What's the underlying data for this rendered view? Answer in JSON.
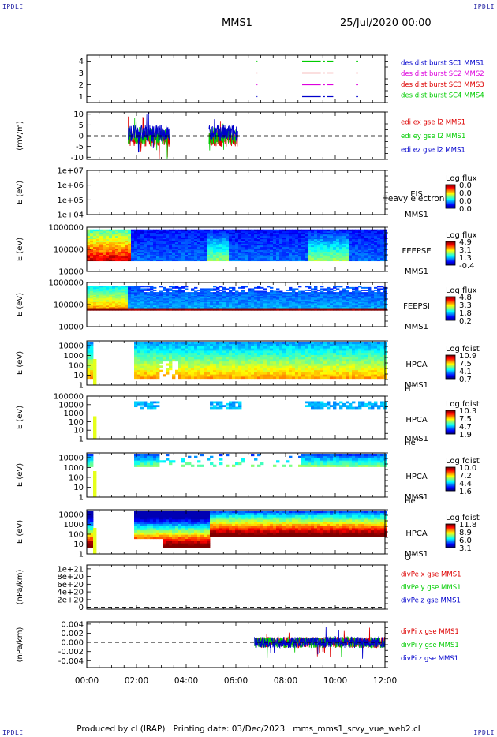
{
  "corner_labels": [
    "IPDLI",
    "IPDLI",
    "IPDLI",
    "IPDLI"
  ],
  "header": {
    "spacecraft": "MMS1",
    "date": "25/Jul/2020 00:00"
  },
  "footer": {
    "produced_by": "Produced by cl (IRAP)",
    "printing_date": "Printing date: 03/Dec/2023",
    "script_name": "mms_mms1_srvy_vue_web2.cl"
  },
  "chart_data": [
    {
      "type": "line",
      "title": "",
      "xlabel": "",
      "ylabel": "",
      "xlim": [
        "00:00",
        "12:00"
      ],
      "ylim": [
        0.5,
        4.5
      ],
      "yticks": [
        "1",
        "2",
        "3",
        "4"
      ],
      "series": [
        {
          "name": "des dist burst SC1 MMS1",
          "color": "#0000cc",
          "level": 1
        },
        {
          "name": "des dist burst SC2 MMS2",
          "color": "#dd00dd",
          "level": 2
        },
        {
          "name": "des dist burst SC3 MMS3",
          "color": "#dd0000",
          "level": 3
        },
        {
          "name": "des dist burst SC4 MMS4",
          "color": "#00cc00",
          "level": 4
        }
      ],
      "intervals": [
        [
          "06:50",
          "06:52"
        ],
        [
          "08:40",
          "09:25"
        ],
        [
          "09:30",
          "09:35"
        ],
        [
          "09:40",
          "09:55"
        ],
        [
          "10:50",
          "10:55"
        ]
      ]
    },
    {
      "type": "line",
      "title": "",
      "xlabel": "",
      "ylabel": "(mV/m)",
      "xlim": [
        "00:00",
        "12:00"
      ],
      "ylim": [
        -11,
        11
      ],
      "yticks": [
        "10",
        "5",
        "0",
        "-5",
        "-10"
      ],
      "zero_line": true,
      "series": [
        {
          "name": "edi ex gse l2 MMS1",
          "color": "#dd0000"
        },
        {
          "name": "edi ey gse l2 MMS1",
          "color": "#00cc00"
        },
        {
          "name": "edi ez gse l2 MMS1",
          "color": "#0000cc"
        }
      ],
      "activity": [
        [
          "01:40",
          "03:20"
        ],
        [
          "04:55",
          "06:05"
        ]
      ]
    },
    {
      "type": "heatmap",
      "title": "",
      "xlabel": "",
      "ylabel": "E (eV)",
      "xlim": [
        "00:00",
        "12:00"
      ],
      "ylim": [
        10000,
        10000000
      ],
      "yscale": "log",
      "yticks": [
        "1e+07",
        "1e+06",
        "1e+05",
        "1e+04"
      ],
      "instrument": [
        "EIS",
        "MMS1"
      ],
      "species_label": "Heavy electron to",
      "colorbar": {
        "title": "Log flux",
        "ticks": [
          "0.0",
          "0.0",
          "0.0",
          "0.0"
        ]
      },
      "empty": true
    },
    {
      "type": "heatmap",
      "title": "",
      "xlabel": "",
      "ylabel": "E (eV)",
      "xlim": [
        "00:00",
        "12:00"
      ],
      "ylim": [
        10000,
        1000000
      ],
      "yscale": "log",
      "yticks": [
        "1000000",
        "100000",
        "10000"
      ],
      "instrument": [
        "FEEPSE",
        "MMS1"
      ],
      "colorbar": {
        "title": "Log flux",
        "ticks": [
          "4.9",
          "3.1",
          "1.3",
          "-0.4"
        ]
      }
    },
    {
      "type": "heatmap",
      "title": "",
      "xlabel": "",
      "ylabel": "E (eV)",
      "xlim": [
        "00:00",
        "12:00"
      ],
      "ylim": [
        10000,
        1000000
      ],
      "yscale": "log",
      "yticks": [
        "1000000",
        "100000",
        "10000"
      ],
      "instrument": [
        "FEEPSI",
        "MMS1"
      ],
      "colorbar": {
        "title": "Log flux",
        "ticks": [
          "4.8",
          "3.3",
          "1.8",
          "0.2"
        ]
      }
    },
    {
      "type": "heatmap",
      "title": "",
      "xlabel": "",
      "ylabel": "E (eV)",
      "xlim": [
        "00:00",
        "12:00"
      ],
      "ylim": [
        1,
        30000
      ],
      "yscale": "log",
      "yticks": [
        "10000",
        "1000",
        "100",
        "10",
        "1"
      ],
      "instrument": [
        "HPCA",
        "MMS1"
      ],
      "species": {
        "base": "H",
        "sup": "+"
      },
      "colorbar": {
        "title": "Log fdist",
        "ticks": [
          "10.9",
          "7.5",
          "4.1",
          "0.7"
        ]
      }
    },
    {
      "type": "heatmap",
      "title": "",
      "xlabel": "",
      "ylabel": "E (eV)",
      "xlim": [
        "00:00",
        "12:00"
      ],
      "ylim": [
        1,
        100000
      ],
      "yscale": "log",
      "yticks": [
        "100000",
        "10000",
        "1000",
        "100",
        "10",
        "1"
      ],
      "instrument": [
        "HPCA",
        "MMS1"
      ],
      "species": {
        "base": "He",
        "sup": "+"
      },
      "colorbar": {
        "title": "Log fdist",
        "ticks": [
          "10.3",
          "7.5",
          "4.7",
          "1.9"
        ]
      }
    },
    {
      "type": "heatmap",
      "title": "",
      "xlabel": "",
      "ylabel": "E (eV)",
      "xlim": [
        "00:00",
        "12:00"
      ],
      "ylim": [
        1,
        30000
      ],
      "yscale": "log",
      "yticks": [
        "10000",
        "1000",
        "100",
        "10",
        "1"
      ],
      "instrument": [
        "HPCA",
        "MMS1"
      ],
      "species": {
        "base": "He",
        "sup": "++"
      },
      "colorbar": {
        "title": "Log fdist",
        "ticks": [
          "10.0",
          "7.2",
          "4.4",
          "1.6"
        ]
      }
    },
    {
      "type": "heatmap",
      "title": "",
      "xlabel": "",
      "ylabel": "E (eV)",
      "xlim": [
        "00:00",
        "12:00"
      ],
      "ylim": [
        1,
        30000
      ],
      "yscale": "log",
      "yticks": [
        "10000",
        "1000",
        "100",
        "10",
        "1"
      ],
      "instrument": [
        "HPCA",
        "MMS1"
      ],
      "species": {
        "base": "O",
        "sup": "+"
      },
      "colorbar": {
        "title": "Log fdist",
        "ticks": [
          "11.8",
          "8.9",
          "6.0",
          "3.1"
        ]
      }
    },
    {
      "type": "line",
      "title": "",
      "xlabel": "",
      "ylabel": "(nPa/km)",
      "xlim": [
        "00:00",
        "12:00"
      ],
      "ylim": [
        -5e+19,
        1.1e+21
      ],
      "yticks": [
        "1e+21",
        "8e+20",
        "6e+20",
        "4e+20",
        "2e+20",
        "0"
      ],
      "zero_line": true,
      "series": [
        {
          "name": "divPe x gse MMS1",
          "color": "#dd0000"
        },
        {
          "name": "divPe y gse MMS1",
          "color": "#00cc00"
        },
        {
          "name": "divPe z gse MMS1",
          "color": "#0000cc"
        }
      ],
      "empty": true
    },
    {
      "type": "line",
      "title": "",
      "xlabel": "",
      "ylabel": "(nPa/km)",
      "xlim": [
        "00:00",
        "12:00"
      ],
      "ylim": [
        -0.0055,
        0.0045
      ],
      "yticks": [
        "0.004",
        "0.002",
        "0.000",
        "-0.002",
        "-0.004"
      ],
      "zero_line": true,
      "series": [
        {
          "name": "divPi x gse MMS1",
          "color": "#dd0000"
        },
        {
          "name": "divPi y gse MMS1",
          "color": "#00cc00"
        },
        {
          "name": "divPi z gse MMS1",
          "color": "#0000cc"
        }
      ],
      "activity": [
        [
          "06:45",
          "12:00"
        ]
      ]
    }
  ],
  "x_axis": {
    "ticks": [
      "00:00",
      "02:00",
      "04:00",
      "06:00",
      "08:00",
      "10:00",
      "12:00"
    ]
  }
}
